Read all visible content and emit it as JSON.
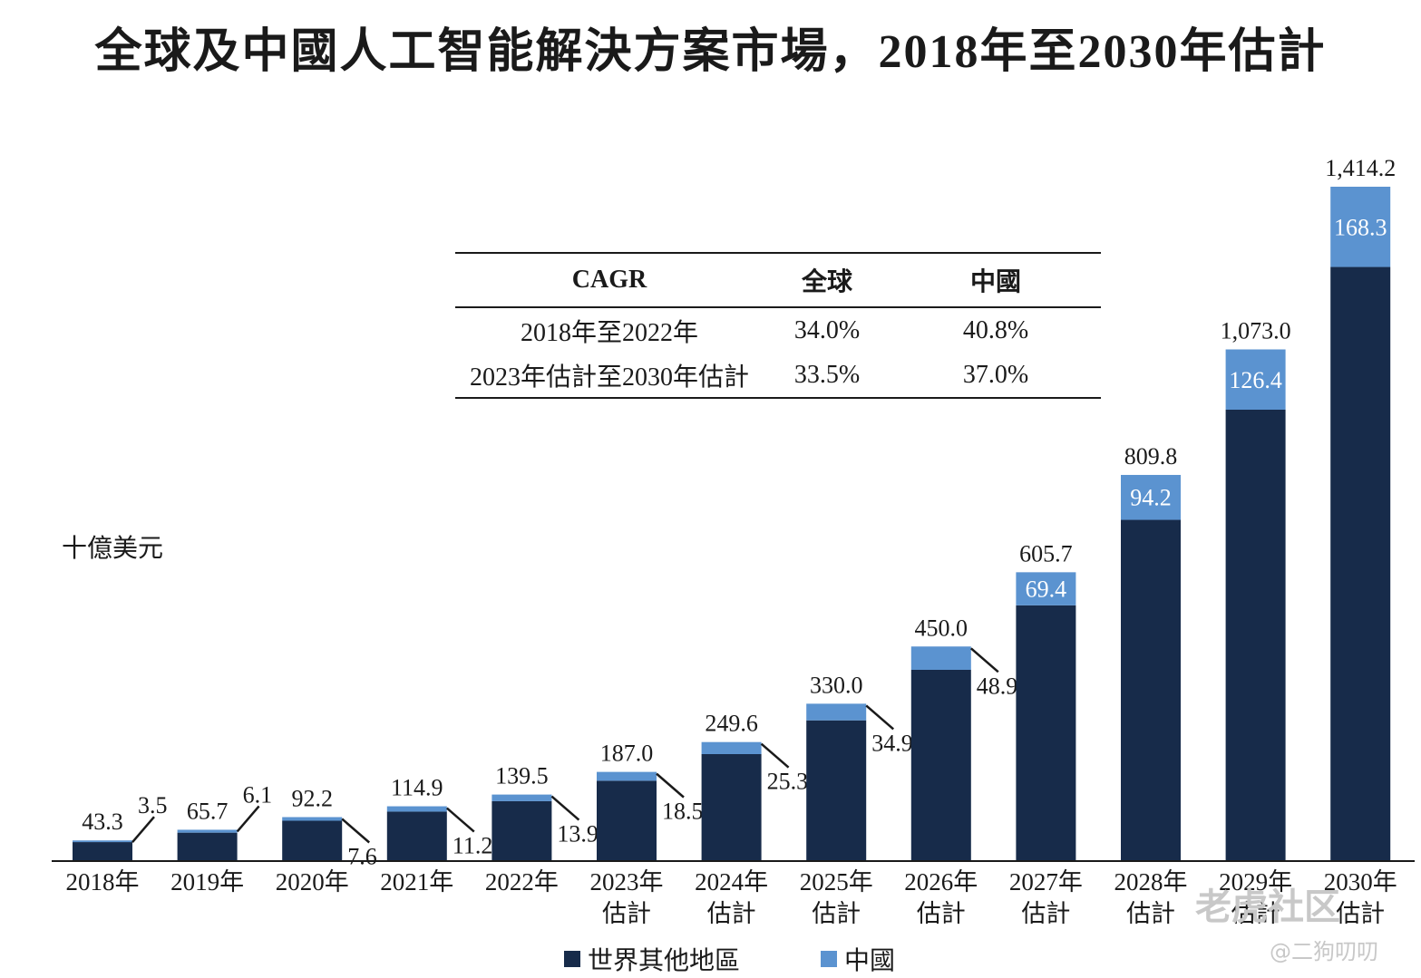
{
  "title": "全球及中國人工智能解決方案市場，2018年至2030年估計",
  "unit_label": "十億美元",
  "cagr_table": {
    "headers": [
      "CAGR",
      "全球",
      "中國"
    ],
    "rows": [
      [
        "2018年至2022年",
        "34.0%",
        "40.8%"
      ],
      [
        "2023年估計至2030年估計",
        "33.5%",
        "37.0%"
      ]
    ]
  },
  "legend": {
    "rest_of_world": "世界其他地區",
    "china": "中國"
  },
  "colors": {
    "rest_of_world": "#172b4a",
    "china": "#5b93d0"
  },
  "watermark": {
    "brand": "老虎社区",
    "handle": "@二狗叨叨"
  },
  "chart_data": {
    "type": "bar",
    "stacked": true,
    "categories": [
      [
        "2018年"
      ],
      [
        "2019年"
      ],
      [
        "2020年"
      ],
      [
        "2021年"
      ],
      [
        "2022年"
      ],
      [
        "2023年",
        "估計"
      ],
      [
        "2024年",
        "估計"
      ],
      [
        "2025年",
        "估計"
      ],
      [
        "2026年",
        "估計"
      ],
      [
        "2027年",
        "估計"
      ],
      [
        "2028年",
        "估計"
      ],
      [
        "2029年",
        "估計"
      ],
      [
        "2030年",
        "估計"
      ]
    ],
    "totals": [
      43.3,
      65.7,
      92.2,
      114.9,
      139.5,
      187.0,
      249.6,
      330.0,
      450.0,
      605.7,
      809.8,
      1073.0,
      1414.2
    ],
    "total_labels": [
      "43.3",
      "65.7",
      "92.2",
      "114.9",
      "139.5",
      "187.0",
      "249.6",
      "330.0",
      "450.0",
      "605.7",
      "809.8",
      "1,073.0",
      "1,414.2"
    ],
    "series": [
      {
        "name": "世界其他地區",
        "values": [
          39.8,
          59.6,
          84.6,
          103.7,
          125.6,
          168.5,
          224.3,
          295.1,
          401.1,
          536.3,
          715.6,
          946.6,
          1245.9
        ]
      },
      {
        "name": "中國",
        "values": [
          3.5,
          6.1,
          7.6,
          11.2,
          13.9,
          18.5,
          25.3,
          34.9,
          48.9,
          69.4,
          94.2,
          126.4,
          168.3
        ]
      }
    ],
    "china_labels": [
      "3.5",
      "6.1",
      "7.6",
      "11.2",
      "13.9",
      "18.5",
      "25.3",
      "34.9",
      "48.9",
      "69.4",
      "94.2",
      "126.4",
      "168.3"
    ],
    "ylim": [
      0,
      1414.2
    ],
    "grid": false
  }
}
